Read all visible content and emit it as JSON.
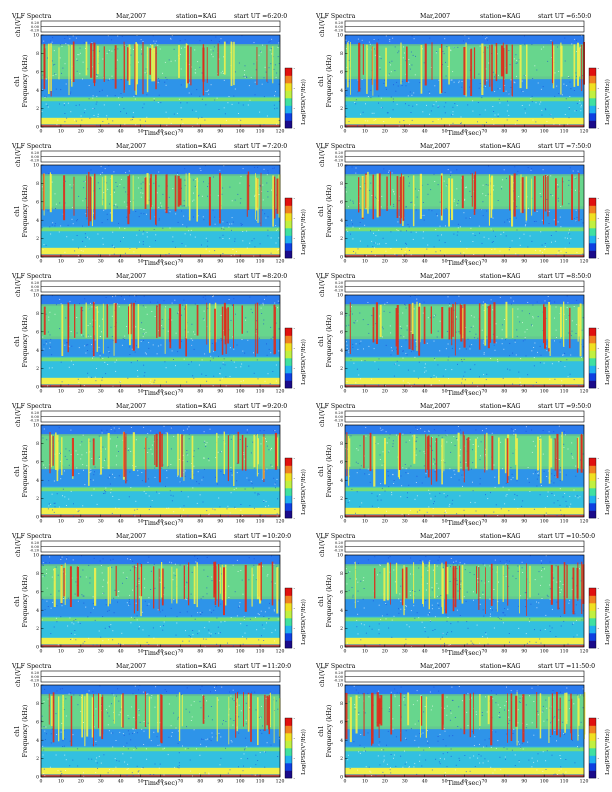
{
  "page": {
    "colors": {
      "spectrogram_background": "#33c0e0",
      "spectrogram_noise": "#2a6ff0",
      "band_green": "#7ee06a",
      "emission_yellow": "#f2f04a",
      "emission_red": "#e02a1a",
      "colorbar": [
        "#1a0a8a",
        "#1040e0",
        "#20b0f0",
        "#40e0a0",
        "#c0f040",
        "#f0e020",
        "#f08020",
        "#e01010"
      ]
    }
  },
  "chart_data": [
    {
      "type": "heatmap",
      "title": "VLF Spectra",
      "date": "Mar,2007",
      "station": "station=KAG",
      "start": "start  UT =6:20:0",
      "top_ylabel": "ch1(V)",
      "top_ticks": [
        "0.20",
        "0.00",
        "-0.20"
      ],
      "ylabel_channel": "ch1",
      "ylabel": "Frequency  (kHz)",
      "xlabel": "Time (sec)",
      "x_ticks": [
        "0",
        "10",
        "20",
        "30",
        "40",
        "50",
        "60",
        "70",
        "80",
        "90",
        "100",
        "110",
        "120"
      ],
      "y_ticks": [
        "0",
        "2",
        "4",
        "6",
        "8",
        "10"
      ],
      "xlim": [
        0,
        120
      ],
      "ylim": [
        0,
        10
      ],
      "colorbar_label": "Log(PSD(V²/Hz))",
      "colorbar_ticks": [
        "-",
        "-",
        "-",
        "-"
      ],
      "grid": false
    },
    {
      "type": "heatmap",
      "title": "VLF Spectra",
      "date": "Mar,2007",
      "station": "station=KAG",
      "start": "start  UT =6:50:0",
      "top_ylabel": "ch1(V)",
      "top_ticks": [
        "0.20",
        "0.00",
        "-0.20"
      ],
      "ylabel_channel": "ch1",
      "ylabel": "Frequency  (kHz)",
      "xlabel": "Time (sec)",
      "x_ticks": [
        "0",
        "10",
        "20",
        "30",
        "40",
        "50",
        "60",
        "70",
        "80",
        "90",
        "100",
        "110",
        "120"
      ],
      "y_ticks": [
        "0",
        "2",
        "4",
        "6",
        "8",
        "10"
      ],
      "xlim": [
        0,
        120
      ],
      "ylim": [
        0,
        10
      ],
      "colorbar_label": "Log(PSD(V²/Hz))",
      "colorbar_ticks": [
        "-",
        "-",
        "-",
        "-"
      ],
      "grid": false
    },
    {
      "type": "heatmap",
      "title": "VLF Spectra",
      "date": "Mar,2007",
      "station": "station=KAG",
      "start": "start  UT =7:20:0",
      "top_ylabel": "ch1(V)",
      "top_ticks": [
        "0.20",
        "0.00",
        "-0.20"
      ],
      "ylabel_channel": "ch1",
      "ylabel": "Frequency  (kHz)",
      "xlabel": "Time (sec)",
      "x_ticks": [
        "0",
        "10",
        "20",
        "30",
        "40",
        "50",
        "60",
        "70",
        "80",
        "90",
        "100",
        "110",
        "120"
      ],
      "y_ticks": [
        "0",
        "2",
        "4",
        "6",
        "8",
        "10"
      ],
      "xlim": [
        0,
        120
      ],
      "ylim": [
        0,
        10
      ],
      "colorbar_label": "Log(PSD(V²/Hz))",
      "colorbar_ticks": [
        "-",
        "-",
        "-",
        "-"
      ],
      "grid": false
    },
    {
      "type": "heatmap",
      "title": "VLF Spectra",
      "date": "Mar,2007",
      "station": "station=KAG",
      "start": "start  UT =7:50:0",
      "top_ylabel": "ch1(V)",
      "top_ticks": [
        "0.20",
        "0.00",
        "-0.20"
      ],
      "ylabel_channel": "ch1",
      "ylabel": "Frequency  (kHz)",
      "xlabel": "Time (sec)",
      "x_ticks": [
        "0",
        "10",
        "20",
        "30",
        "40",
        "50",
        "60",
        "70",
        "80",
        "90",
        "100",
        "110",
        "120"
      ],
      "y_ticks": [
        "0",
        "2",
        "4",
        "6",
        "8",
        "10"
      ],
      "xlim": [
        0,
        120
      ],
      "ylim": [
        0,
        10
      ],
      "colorbar_label": "Log(PSD(V²/Hz))",
      "colorbar_ticks": [
        "-",
        "-",
        "-",
        "-"
      ],
      "grid": false
    },
    {
      "type": "heatmap",
      "title": "VLF Spectra",
      "date": "Mar,2007",
      "station": "station=KAG",
      "start": "start  UT =8:20:0",
      "top_ylabel": "ch1(V)",
      "top_ticks": [
        "0.20",
        "0.00",
        "-0.20"
      ],
      "ylabel_channel": "ch1",
      "ylabel": "Frequency  (kHz)",
      "xlabel": "Time (sec)",
      "x_ticks": [
        "0",
        "10",
        "20",
        "30",
        "40",
        "50",
        "60",
        "70",
        "80",
        "90",
        "100",
        "110",
        "120"
      ],
      "y_ticks": [
        "0",
        "2",
        "4",
        "6",
        "8",
        "10"
      ],
      "xlim": [
        0,
        120
      ],
      "ylim": [
        0,
        10
      ],
      "colorbar_label": "Log(PSD(V²/Hz))",
      "colorbar_ticks": [
        "-",
        "-",
        "-",
        "-"
      ],
      "grid": false
    },
    {
      "type": "heatmap",
      "title": "VLF Spectra",
      "date": "Mar,2007",
      "station": "station=KAG",
      "start": "start  UT =8:50:0",
      "top_ylabel": "ch1(V)",
      "top_ticks": [
        "0.20",
        "0.00",
        "-0.20"
      ],
      "ylabel_channel": "ch1",
      "ylabel": "Frequency  (kHz)",
      "xlabel": "Time (sec)",
      "x_ticks": [
        "0",
        "10",
        "20",
        "30",
        "40",
        "50",
        "60",
        "70",
        "80",
        "90",
        "100",
        "110",
        "120"
      ],
      "y_ticks": [
        "0",
        "2",
        "4",
        "6",
        "8",
        "10"
      ],
      "xlim": [
        0,
        120
      ],
      "ylim": [
        0,
        10
      ],
      "colorbar_label": "Log(PSD(V²/Hz))",
      "colorbar_ticks": [
        "-",
        "-",
        "-",
        "-"
      ],
      "grid": false
    },
    {
      "type": "heatmap",
      "title": "VLF Spectra",
      "date": "Mar,2007",
      "station": "station=KAG",
      "start": "start  UT =9:20:0",
      "top_ylabel": "ch1(V)",
      "top_ticks": [
        "0.20",
        "0.00",
        "-0.20"
      ],
      "ylabel_channel": "ch1",
      "ylabel": "Frequency  (kHz)",
      "xlabel": "Time (sec)",
      "x_ticks": [
        "0",
        "10",
        "20",
        "30",
        "40",
        "50",
        "60",
        "70",
        "80",
        "90",
        "100",
        "110",
        "120"
      ],
      "y_ticks": [
        "0",
        "2",
        "4",
        "6",
        "8",
        "10"
      ],
      "xlim": [
        0,
        120
      ],
      "ylim": [
        0,
        10
      ],
      "colorbar_label": "Log(PSD(V²/Hz))",
      "colorbar_ticks": [
        "-",
        "-",
        "-",
        "-"
      ],
      "grid": false
    },
    {
      "type": "heatmap",
      "title": "VLF Spectra",
      "date": "Mar,2007",
      "station": "station=KAG",
      "start": "start  UT =9:50:0",
      "top_ylabel": "ch1(V)",
      "top_ticks": [
        "0.20",
        "0.00",
        "-0.20"
      ],
      "ylabel_channel": "ch1",
      "ylabel": "Frequency  (kHz)",
      "xlabel": "Time (sec)",
      "x_ticks": [
        "0",
        "10",
        "20",
        "30",
        "40",
        "50",
        "60",
        "70",
        "80",
        "90",
        "100",
        "110",
        "120"
      ],
      "y_ticks": [
        "0",
        "2",
        "4",
        "6",
        "8",
        "10"
      ],
      "xlim": [
        0,
        120
      ],
      "ylim": [
        0,
        10
      ],
      "colorbar_label": "Log(PSD(V²/Hz))",
      "colorbar_ticks": [
        "-",
        "-",
        "-",
        "-"
      ],
      "grid": false
    },
    {
      "type": "heatmap",
      "title": "VLF Spectra",
      "date": "Mar,2007",
      "station": "station=KAG",
      "start": "start  UT =10:20:0",
      "top_ylabel": "ch1(V)",
      "top_ticks": [
        "0.20",
        "0.00",
        "-0.20"
      ],
      "ylabel_channel": "ch1",
      "ylabel": "Frequency  (kHz)",
      "xlabel": "Time (sec)",
      "x_ticks": [
        "0",
        "10",
        "20",
        "30",
        "40",
        "50",
        "60",
        "70",
        "80",
        "90",
        "100",
        "110",
        "120"
      ],
      "y_ticks": [
        "0",
        "2",
        "4",
        "6",
        "8",
        "10"
      ],
      "xlim": [
        0,
        120
      ],
      "ylim": [
        0,
        10
      ],
      "colorbar_label": "Log(PSD(V²/Hz))",
      "colorbar_ticks": [
        "-",
        "-",
        "-",
        "-"
      ],
      "grid": false
    },
    {
      "type": "heatmap",
      "title": "VLF Spectra",
      "date": "Mar,2007",
      "station": "station=KAG",
      "start": "start  UT =10:50:0",
      "top_ylabel": "ch1(V)",
      "top_ticks": [
        "0.20",
        "0.00",
        "-0.20"
      ],
      "ylabel_channel": "ch1",
      "ylabel": "Frequency  (kHz)",
      "xlabel": "Time (sec)",
      "x_ticks": [
        "0",
        "10",
        "20",
        "30",
        "40",
        "50",
        "60",
        "70",
        "80",
        "90",
        "100",
        "110",
        "120"
      ],
      "y_ticks": [
        "0",
        "2",
        "4",
        "6",
        "8",
        "10"
      ],
      "xlim": [
        0,
        120
      ],
      "ylim": [
        0,
        10
      ],
      "colorbar_label": "Log(PSD(V²/Hz))",
      "colorbar_ticks": [
        "-",
        "-",
        "-",
        "-"
      ],
      "grid": false
    },
    {
      "type": "heatmap",
      "title": "VLF Spectra",
      "date": "Mar,2007",
      "station": "station=KAG",
      "start": "start  UT =11:20:0",
      "top_ylabel": "ch1(V)",
      "top_ticks": [
        "0.20",
        "0.00",
        "-0.20"
      ],
      "ylabel_channel": "ch1",
      "ylabel": "Frequency  (kHz)",
      "xlabel": "Time (sec)",
      "x_ticks": [
        "0",
        "10",
        "20",
        "30",
        "40",
        "50",
        "60",
        "70",
        "80",
        "90",
        "100",
        "110",
        "120"
      ],
      "y_ticks": [
        "0",
        "2",
        "4",
        "6",
        "8",
        "10"
      ],
      "xlim": [
        0,
        120
      ],
      "ylim": [
        0,
        10
      ],
      "colorbar_label": "Log(PSD(V²/Hz))",
      "colorbar_ticks": [
        "-",
        "-",
        "-",
        "-"
      ],
      "grid": false
    },
    {
      "type": "heatmap",
      "title": "VLF Spectra",
      "date": "Mar,2007",
      "station": "station=KAG",
      "start": "start  UT =11:50:0",
      "top_ylabel": "ch1(V)",
      "top_ticks": [
        "0.20",
        "0.00",
        "-0.20"
      ],
      "ylabel_channel": "ch1",
      "ylabel": "Frequency  (kHz)",
      "xlabel": "Time (sec)",
      "x_ticks": [
        "0",
        "10",
        "20",
        "30",
        "40",
        "50",
        "60",
        "70",
        "80",
        "90",
        "100",
        "110",
        "120"
      ],
      "y_ticks": [
        "0",
        "2",
        "4",
        "6",
        "8",
        "10"
      ],
      "xlim": [
        0,
        120
      ],
      "ylim": [
        0,
        10
      ],
      "colorbar_label": "Log(PSD(V²/Hz))",
      "colorbar_ticks": [
        "-",
        "-",
        "-",
        "-"
      ],
      "grid": false
    }
  ]
}
